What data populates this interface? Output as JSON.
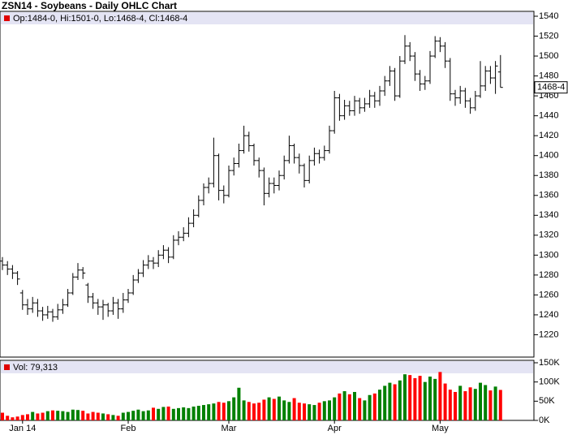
{
  "chart_data": [
    {
      "type": "ohlc",
      "title": "ZSN14 - Soybeans - Daily OHLC Chart",
      "legend": "Op:1484-0, Hi:1501-0, Lo:1468-4, Cl:1468-4",
      "legend_color": "#e00000",
      "color": "#000000",
      "categories": [
        null,
        null,
        null,
        null,
        "Jan 14",
        null,
        null,
        null,
        null,
        null,
        null,
        null,
        null,
        null,
        null,
        null,
        null,
        null,
        null,
        null,
        null,
        null,
        null,
        null,
        null,
        "Feb",
        null,
        null,
        null,
        null,
        null,
        null,
        null,
        null,
        null,
        null,
        null,
        null,
        null,
        null,
        null,
        null,
        null,
        null,
        null,
        "Mar",
        null,
        null,
        null,
        null,
        null,
        null,
        null,
        null,
        null,
        null,
        null,
        null,
        null,
        null,
        null,
        null,
        null,
        null,
        null,
        null,
        "Apr",
        null,
        null,
        null,
        null,
        null,
        null,
        null,
        null,
        null,
        null,
        null,
        null,
        null,
        null,
        null,
        null,
        null,
        null,
        null,
        null,
        "May",
        null,
        null,
        null,
        null,
        null,
        null,
        null,
        null,
        null,
        null,
        null,
        null
      ],
      "open": [
        1294,
        1290,
        1286,
        1282,
        1262,
        1250,
        1246,
        1252,
        1244,
        1240,
        1243,
        1238,
        1245,
        1250,
        1262,
        1278,
        1285,
        1270,
        1258,
        1252,
        1248,
        1250,
        1244,
        1252,
        1246,
        1255,
        1262,
        1275,
        1282,
        1290,
        1294,
        1292,
        1300,
        1305,
        1298,
        1315,
        1318,
        1322,
        1332,
        1340,
        1355,
        1368,
        1372,
        1400,
        1365,
        1360,
        1385,
        1392,
        1405,
        1420,
        1410,
        1395,
        1385,
        1362,
        1372,
        1370,
        1380,
        1395,
        1410,
        1398,
        1390,
        1375,
        1395,
        1402,
        1398,
        1405,
        1425,
        1458,
        1440,
        1450,
        1445,
        1455,
        1448,
        1452,
        1460,
        1455,
        1465,
        1475,
        1485,
        1460,
        1495,
        1510,
        1500,
        1482,
        1472,
        1475,
        1500,
        1515,
        1510,
        1495,
        1462,
        1458,
        1465,
        1455,
        1448,
        1460,
        1470,
        1485,
        1478,
        1484
      ],
      "high": [
        1298,
        1294,
        1290,
        1284,
        1265,
        1256,
        1258,
        1256,
        1248,
        1249,
        1246,
        1251,
        1256,
        1266,
        1282,
        1292,
        1288,
        1272,
        1262,
        1256,
        1255,
        1252,
        1258,
        1256,
        1262,
        1266,
        1280,
        1286,
        1295,
        1300,
        1298,
        1305,
        1310,
        1308,
        1320,
        1324,
        1328,
        1338,
        1346,
        1360,
        1372,
        1378,
        1418,
        1402,
        1370,
        1390,
        1398,
        1412,
        1430,
        1424,
        1412,
        1398,
        1388,
        1378,
        1378,
        1385,
        1400,
        1420,
        1412,
        1402,
        1392,
        1400,
        1408,
        1406,
        1410,
        1430,
        1465,
        1462,
        1456,
        1455,
        1460,
        1458,
        1458,
        1466,
        1464,
        1470,
        1480,
        1490,
        1488,
        1500,
        1521,
        1514,
        1504,
        1486,
        1480,
        1505,
        1520,
        1519,
        1514,
        1498,
        1466,
        1470,
        1468,
        1458,
        1465,
        1495,
        1490,
        1490,
        1495,
        1501
      ],
      "low": [
        1285,
        1280,
        1276,
        1270,
        1245,
        1240,
        1242,
        1238,
        1234,
        1236,
        1233,
        1235,
        1241,
        1248,
        1260,
        1275,
        1276,
        1252,
        1246,
        1240,
        1235,
        1238,
        1240,
        1236,
        1242,
        1252,
        1260,
        1272,
        1278,
        1286,
        1286,
        1288,
        1296,
        1292,
        1296,
        1310,
        1314,
        1318,
        1328,
        1338,
        1350,
        1362,
        1368,
        1355,
        1352,
        1358,
        1380,
        1388,
        1402,
        1404,
        1390,
        1378,
        1350,
        1358,
        1362,
        1365,
        1376,
        1392,
        1392,
        1382,
        1368,
        1372,
        1390,
        1392,
        1395,
        1402,
        1422,
        1435,
        1436,
        1440,
        1440,
        1442,
        1444,
        1448,
        1448,
        1450,
        1460,
        1470,
        1455,
        1458,
        1492,
        1495,
        1475,
        1465,
        1466,
        1472,
        1498,
        1504,
        1488,
        1455,
        1450,
        1452,
        1448,
        1442,
        1445,
        1458,
        1465,
        1472,
        1462,
        1468.5
      ],
      "close": [
        1290,
        1286,
        1282,
        1276,
        1250,
        1246,
        1252,
        1244,
        1240,
        1243,
        1238,
        1245,
        1250,
        1262,
        1278,
        1285,
        1282,
        1258,
        1252,
        1248,
        1250,
        1244,
        1252,
        1246,
        1255,
        1262,
        1275,
        1282,
        1290,
        1294,
        1292,
        1300,
        1305,
        1298,
        1315,
        1318,
        1322,
        1332,
        1340,
        1355,
        1368,
        1372,
        1400,
        1365,
        1360,
        1385,
        1392,
        1405,
        1420,
        1410,
        1395,
        1385,
        1362,
        1372,
        1370,
        1380,
        1395,
        1410,
        1398,
        1390,
        1375,
        1395,
        1402,
        1398,
        1405,
        1425,
        1458,
        1440,
        1450,
        1445,
        1455,
        1448,
        1452,
        1460,
        1455,
        1465,
        1475,
        1485,
        1460,
        1495,
        1510,
        1500,
        1482,
        1472,
        1475,
        1500,
        1515,
        1510,
        1495,
        1462,
        1458,
        1465,
        1455,
        1448,
        1460,
        1470,
        1485,
        1478,
        1490,
        1468.5
      ],
      "last_label": "1468-4",
      "ylim": [
        1200,
        1540
      ],
      "yticks": [
        1220,
        1240,
        1260,
        1280,
        1300,
        1320,
        1340,
        1360,
        1380,
        1400,
        1420,
        1440,
        1460,
        1480,
        1500,
        1520,
        1540
      ],
      "grid": false
    },
    {
      "type": "volume",
      "legend": "Vol: 79,313",
      "legend_color": "#e00000",
      "up_color": "#008000",
      "down_color": "#ff0000",
      "flat_color": "#000080",
      "values": [
        20000,
        12000,
        8000,
        10000,
        14000,
        16000,
        22000,
        18000,
        20000,
        24000,
        26000,
        25000,
        24000,
        22000,
        28000,
        27000,
        25000,
        18000,
        22000,
        20000,
        18000,
        16000,
        14000,
        12000,
        20000,
        22000,
        25000,
        28000,
        24000,
        26000,
        33000,
        30000,
        35000,
        36000,
        30000,
        32000,
        34000,
        32000,
        36000,
        38000,
        40000,
        42000,
        44000,
        48000,
        46000,
        50000,
        60000,
        85000,
        52000,
        48000,
        44000,
        46000,
        54000,
        60000,
        56000,
        62000,
        52000,
        48000,
        58000,
        46000,
        44000,
        42000,
        40000,
        46000,
        50000,
        52000,
        60000,
        70000,
        76000,
        68000,
        74000,
        58000,
        52000,
        66000,
        70000,
        80000,
        90000,
        98000,
        94000,
        104000,
        120000,
        118000,
        110000,
        116000,
        100000,
        114000,
        108000,
        126000,
        96000,
        80000,
        74000,
        90000,
        76000,
        86000,
        82000,
        98000,
        92000,
        78000,
        88000,
        79313
      ],
      "ylim": [
        0,
        150000
      ],
      "yticks": [
        {
          "value": 0,
          "label": "0K"
        },
        {
          "value": 50000,
          "label": "50K"
        },
        {
          "value": 100000,
          "label": "100K"
        },
        {
          "value": 150000,
          "label": "150K"
        }
      ]
    }
  ]
}
